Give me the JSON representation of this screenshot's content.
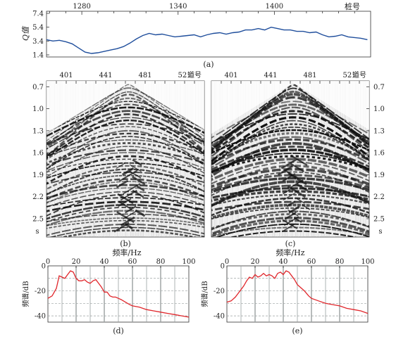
{
  "panels": {
    "a": {
      "caption": "(a)",
      "top_axis_label": "桩号",
      "top_ticks": [
        "1280",
        "1340",
        "1400"
      ],
      "y_axis_label": "Q值",
      "y_ticks": [
        "7.4",
        "5.4",
        "3.4",
        "1.4"
      ]
    },
    "b": {
      "caption": "(b)",
      "trace_axis_label": "道号",
      "trace_ticks": [
        "401",
        "441",
        "481",
        "521"
      ],
      "time_ticks": [
        "0.7",
        "1.0",
        "1.3",
        "1.6",
        "1.9",
        "2.2",
        "2.5"
      ],
      "time_unit": "s"
    },
    "c": {
      "caption": "(c)",
      "trace_axis_label": "道号",
      "trace_ticks": [
        "401",
        "441",
        "481",
        "521"
      ],
      "time_ticks": [
        "0.7",
        "1.0",
        "1.3",
        "1.6",
        "1.9",
        "2.2",
        "2.5"
      ],
      "time_unit": "s"
    },
    "d": {
      "caption": "(d)",
      "x_axis_label": "频率/Hz",
      "y_axis_label": "频谱/dB",
      "x_ticks": [
        "0",
        "20",
        "40",
        "60",
        "80",
        "100"
      ],
      "y_ticks": [
        "0",
        "-20",
        "-40"
      ]
    },
    "e": {
      "caption": "(e)",
      "x_axis_label": "频率/Hz",
      "y_axis_label": "频谱/dB",
      "x_ticks": [
        "0",
        "20",
        "40",
        "60",
        "80",
        "100"
      ],
      "y_ticks": [
        "0",
        "-20",
        "-40"
      ]
    }
  },
  "colors": {
    "q_curve": "#1f4e9c",
    "spectrum": "#e0262b",
    "grid": "#9aa0a0",
    "axis": "#333333"
  },
  "chart_data": [
    {
      "id": "a",
      "type": "line",
      "title": "",
      "xlabel": "桩号",
      "ylabel": "Q值",
      "xlim": [
        1258,
        1460
      ],
      "ylim": [
        1.4,
        7.4
      ],
      "x": [
        1258,
        1262,
        1266,
        1270,
        1274,
        1278,
        1282,
        1286,
        1290,
        1294,
        1298,
        1302,
        1306,
        1310,
        1314,
        1318,
        1322,
        1326,
        1330,
        1334,
        1338,
        1342,
        1346,
        1350,
        1354,
        1358,
        1362,
        1366,
        1370,
        1374,
        1378,
        1382,
        1386,
        1390,
        1394,
        1398,
        1402,
        1406,
        1410,
        1414,
        1418,
        1422,
        1426,
        1430,
        1434,
        1438,
        1442,
        1446,
        1450,
        1454,
        1458
      ],
      "values": [
        3.6,
        3.4,
        3.5,
        3.3,
        3.0,
        2.4,
        1.8,
        1.6,
        1.7,
        1.9,
        2.1,
        2.3,
        2.6,
        3.1,
        3.7,
        4.2,
        4.5,
        4.3,
        4.4,
        4.2,
        4.0,
        4.1,
        4.2,
        4.3,
        4.0,
        4.3,
        4.5,
        4.6,
        4.4,
        4.6,
        4.7,
        5.0,
        5.0,
        5.2,
        5.0,
        5.4,
        5.2,
        5.0,
        5.0,
        4.8,
        4.8,
        4.6,
        4.7,
        4.3,
        4.0,
        4.1,
        4.3,
        4.0,
        3.9,
        3.8,
        3.6
      ],
      "series": [
        {
          "name": "",
          "color": "#1f4e9c"
        }
      ],
      "grid": false
    },
    {
      "id": "d",
      "type": "line",
      "title": "",
      "xlabel": "频率/Hz",
      "ylabel": "频谱/dB",
      "xlim": [
        0,
        100
      ],
      "ylim": [
        -45,
        0
      ],
      "x": [
        0,
        3,
        6,
        8,
        10,
        12,
        14,
        16,
        18,
        20,
        22,
        24,
        26,
        28,
        30,
        32,
        34,
        36,
        38,
        40,
        42,
        44,
        46,
        48,
        50,
        52,
        55,
        58,
        60,
        65,
        70,
        75,
        80,
        85,
        90,
        95,
        100
      ],
      "values": [
        -26,
        -24,
        -18,
        -8,
        -9,
        -10,
        -7,
        -4,
        -5,
        -10,
        -12,
        -12,
        -11,
        -13,
        -14,
        -12,
        -11,
        -14,
        -17,
        -21,
        -21,
        -24,
        -25,
        -25,
        -26,
        -27,
        -29,
        -31,
        -32,
        -33,
        -35,
        -36,
        -37,
        -38,
        -39,
        -40,
        -41
      ],
      "series": [
        {
          "name": "",
          "color": "#e0262b"
        }
      ],
      "grid": true
    },
    {
      "id": "e",
      "type": "line",
      "title": "",
      "xlabel": "频率/Hz",
      "ylabel": "频谱/dB",
      "xlim": [
        0,
        100
      ],
      "ylim": [
        -45,
        0
      ],
      "x": [
        0,
        3,
        6,
        8,
        10,
        12,
        14,
        16,
        18,
        20,
        22,
        24,
        26,
        28,
        30,
        32,
        34,
        36,
        38,
        40,
        42,
        44,
        46,
        48,
        50,
        52,
        55,
        58,
        60,
        65,
        70,
        75,
        80,
        85,
        90,
        95,
        100
      ],
      "values": [
        -29,
        -28,
        -25,
        -22,
        -19,
        -16,
        -12,
        -9,
        -10,
        -7,
        -9,
        -8,
        -6,
        -8,
        -7,
        -8,
        -10,
        -6,
        -5,
        -7,
        -4,
        -5,
        -8,
        -11,
        -15,
        -17,
        -20,
        -24,
        -26,
        -28,
        -30,
        -31,
        -32,
        -34,
        -35,
        -36,
        -38
      ],
      "series": [
        {
          "name": "",
          "color": "#e0262b"
        }
      ],
      "grid": true
    }
  ]
}
